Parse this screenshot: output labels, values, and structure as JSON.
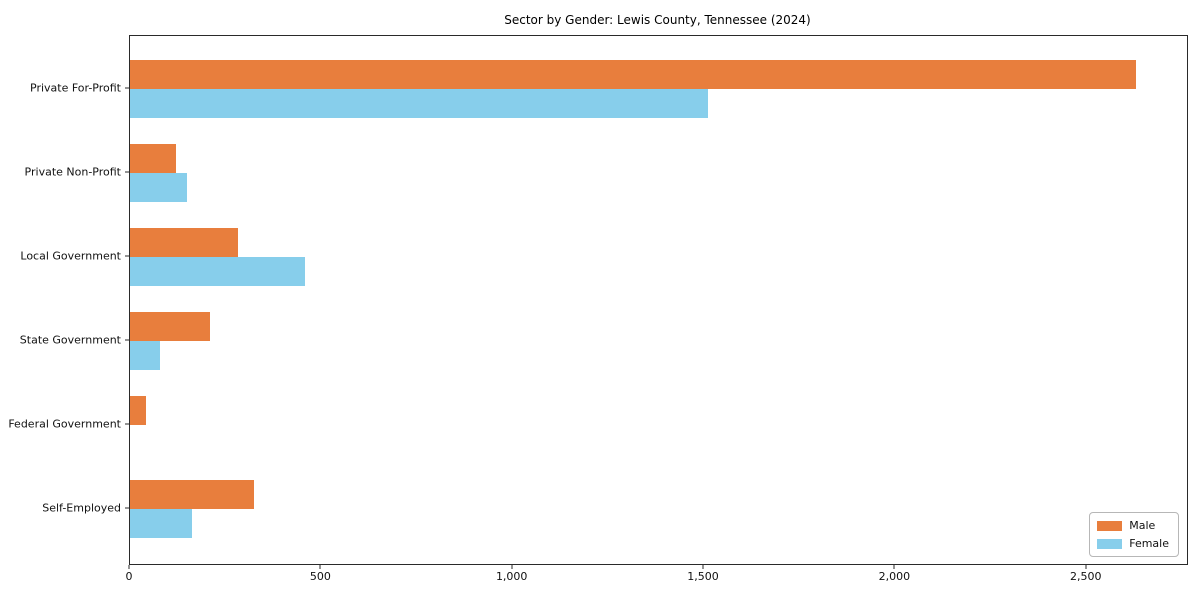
{
  "title": "Sector by Gender: Lewis County, Tennessee (2024)",
  "chart_data": {
    "type": "bar",
    "orientation": "horizontal",
    "title": "Sector by Gender: Lewis County, Tennessee (2024)",
    "categories": [
      "Private For-Profit",
      "Private Non-Profit",
      "Local Government",
      "State Government",
      "Federal Government",
      "Self-Employed"
    ],
    "series": [
      {
        "name": "Male",
        "color": "#e87e3d",
        "values": [
          2630,
          120,
          283,
          210,
          43,
          323
        ]
      },
      {
        "name": "Female",
        "color": "#87ceeb",
        "values": [
          1510,
          149,
          457,
          78,
          0,
          163
        ]
      }
    ],
    "xlim": [
      0,
      2762
    ],
    "x_ticks": [
      0,
      500,
      1000,
      1500,
      2000,
      2500
    ],
    "x_tick_labels": [
      "0",
      "500",
      "1,000",
      "1,500",
      "2,000",
      "2,500"
    ],
    "xlabel": "",
    "ylabel": "",
    "grid": false,
    "legend_position": "lower right",
    "legend": [
      "Male",
      "Female"
    ]
  }
}
